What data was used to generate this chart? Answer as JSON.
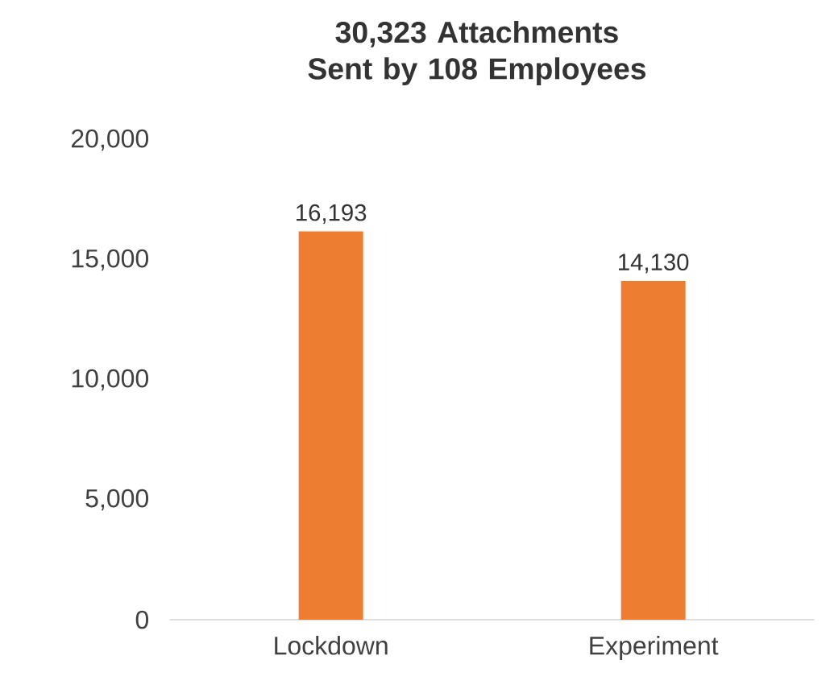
{
  "chart_data": {
    "type": "bar",
    "title": "30,323 Attachments Sent by 108 Employees",
    "categories": [
      "Lockdown",
      "Experiment"
    ],
    "values": [
      16193,
      14130
    ],
    "value_labels": [
      "16,193",
      "14,130"
    ],
    "color": "#ed7d31",
    "ylim": [
      0,
      20000
    ],
    "yticks": [
      {
        "value": 0,
        "label": "0"
      },
      {
        "value": 5000,
        "label": "5,000"
      },
      {
        "value": 10000,
        "label": "10,000"
      },
      {
        "value": 15000,
        "label": "15,000"
      },
      {
        "value": 20000,
        "label": "20,000"
      }
    ],
    "grid": false
  }
}
